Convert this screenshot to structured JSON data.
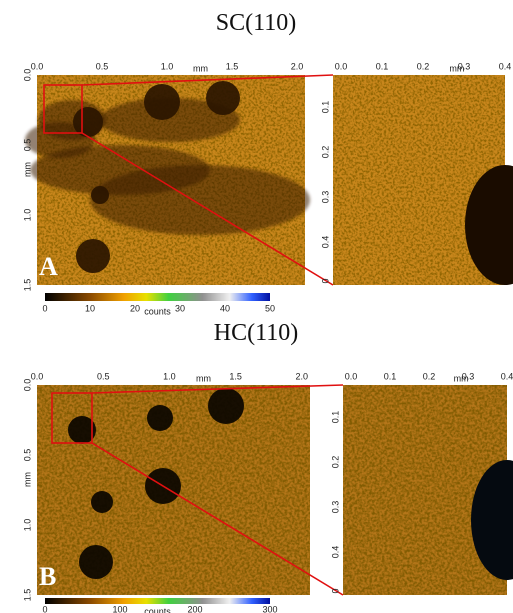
{
  "panels": [
    {
      "title": "SC(110)",
      "label": "A",
      "axis_unit": "mm",
      "x_ticks": [
        "0.0",
        "0.5",
        "1.0",
        "1.5",
        "2.0"
      ],
      "y_ticks": [
        "0.0",
        "0.5",
        "1.0",
        "1.5"
      ],
      "zoom_x_ticks": [
        "0.0",
        "0.1",
        "0.2",
        "0.3",
        "0.4"
      ],
      "zoom_y_ticks": [
        "0.1",
        "0.2",
        "0.3",
        "0.4",
        "0"
      ],
      "colorbar_ticks": [
        "0",
        "10",
        "20",
        "30",
        "40",
        "50"
      ],
      "colorbar_unit": "counts"
    },
    {
      "title": "HC(110)",
      "label": "B",
      "axis_unit": "mm",
      "x_ticks": [
        "0.0",
        "0.5",
        "1.0",
        "1.5",
        "2.0"
      ],
      "y_ticks": [
        "0.0",
        "0.5",
        "1.0",
        "1.5"
      ],
      "zoom_x_ticks": [
        "0.0",
        "0.1",
        "0.2",
        "0.3",
        "0.4"
      ],
      "zoom_y_ticks": [
        "0.1",
        "0.2",
        "0.3",
        "0.4",
        "0"
      ],
      "colorbar_ticks": [
        "0",
        "100",
        "200",
        "300"
      ],
      "colorbar_unit": "counts"
    }
  ]
}
